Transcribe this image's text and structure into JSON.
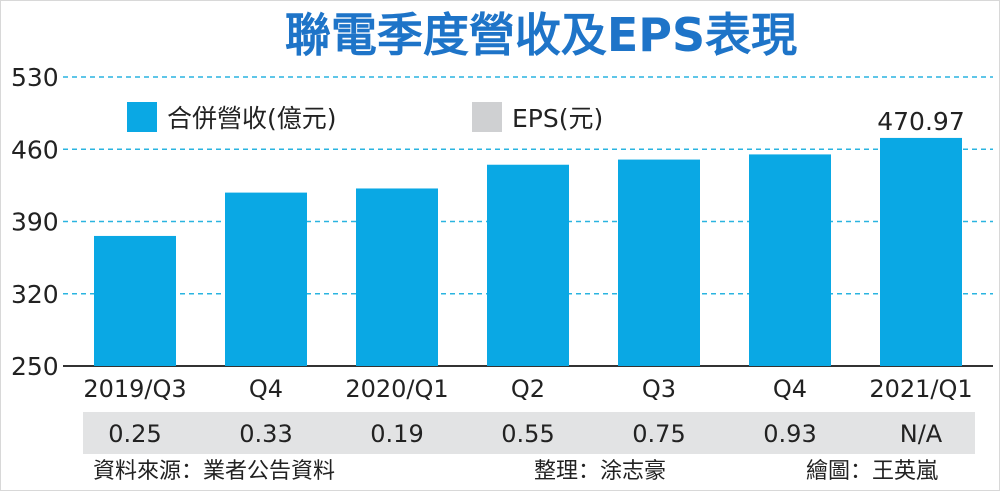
{
  "colors": {
    "title": "#1e74c8",
    "bar": "#0aa8e4",
    "eps_legend_swatch": "#cfd0d2",
    "eps_row_bg": "#e2e3e4",
    "grid": "#2ab4e0",
    "text": "#222222"
  },
  "chart_data": {
    "type": "bar",
    "title": "聯電季度營收及EPS表現",
    "categories": [
      "2019/Q3",
      "Q4",
      "2020/Q1",
      "Q2",
      "Q3",
      "Q4",
      "2021/Q1"
    ],
    "series": [
      {
        "name": "合併營收(億元)",
        "values": [
          376,
          418,
          422,
          445,
          450,
          455,
          470.97
        ]
      }
    ],
    "eps_series": {
      "name": "EPS(元)",
      "values": [
        "0.25",
        "0.33",
        "0.19",
        "0.55",
        "0.75",
        "0.93",
        "N/A"
      ]
    },
    "data_labels": [
      {
        "index": 6,
        "text": "470.97"
      }
    ],
    "yticks": [
      "250",
      "320",
      "390",
      "460",
      "530"
    ],
    "ylim": [
      250,
      530
    ],
    "grid": true,
    "legend_position": "top-left"
  },
  "footer": {
    "source": "資料來源：業者公告資料",
    "editor": "整理：涂志豪",
    "illustrator": "繪圖：王英嵐"
  }
}
